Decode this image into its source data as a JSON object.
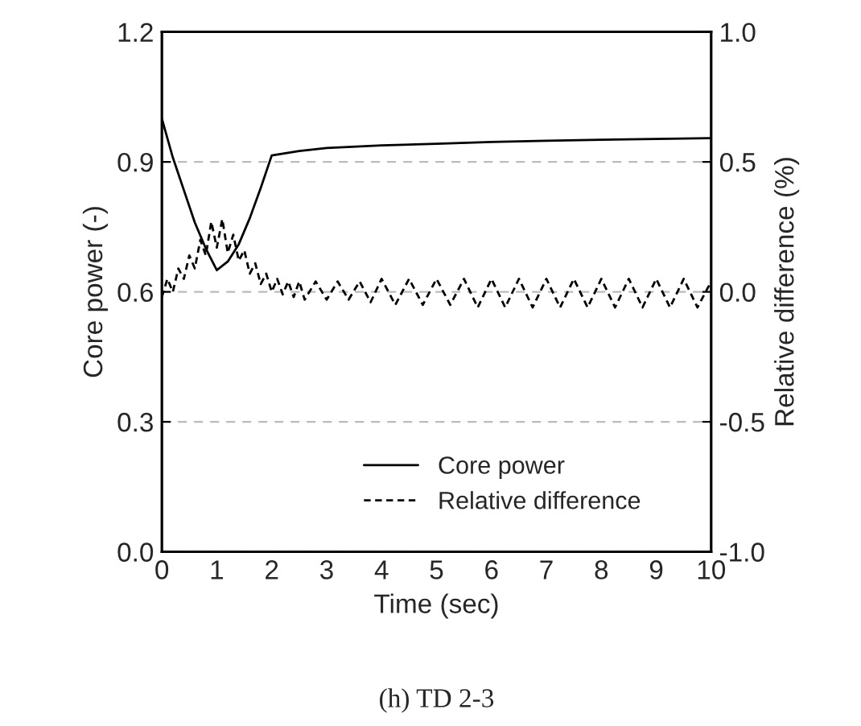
{
  "chart_data": {
    "type": "line",
    "xlabel": "Time (sec)",
    "ylabel": "Core power (-)",
    "y2label": "Relative difference (%)",
    "annotations": [
      "(h) TD 2-3"
    ],
    "xlim": [
      0,
      10
    ],
    "xticks": [
      0,
      1,
      2,
      3,
      4,
      5,
      6,
      7,
      8,
      9,
      10
    ],
    "ylim": [
      0,
      1.2
    ],
    "yticks": [
      {
        "value": 0,
        "label": "0.0"
      },
      0.3,
      0.6,
      0.9,
      1.2
    ],
    "y2lim": [
      -1,
      1
    ],
    "y2ticks": [
      {
        "value": -1,
        "label": "-1.0"
      },
      -0.5,
      {
        "value": 0,
        "label": "0.0"
      },
      0.5,
      {
        "value": 1,
        "label": "1.0"
      }
    ],
    "grid": "y",
    "legend": "bottom",
    "marker": "none",
    "series": [
      {
        "name": "Core power",
        "color": "#000000",
        "line_style": "solid",
        "x": [
          0,
          0.2,
          0.4,
          0.6,
          0.8,
          1.0,
          1.2,
          1.4,
          1.6,
          1.8,
          2.0,
          2.5,
          3,
          4,
          5,
          6,
          7,
          8,
          9,
          10
        ],
        "values": [
          1.0,
          0.91,
          0.835,
          0.76,
          0.7,
          0.65,
          0.67,
          0.71,
          0.77,
          0.84,
          0.915,
          0.925,
          0.932,
          0.938,
          0.942,
          0.946,
          0.949,
          0.951,
          0.953,
          0.955
        ]
      },
      {
        "name": "Relative difference",
        "color": "#000000",
        "line_style": "dashed",
        "axis": "y2",
        "x": [
          0,
          0.1,
          0.2,
          0.3,
          0.4,
          0.5,
          0.6,
          0.7,
          0.8,
          0.9,
          1.0,
          1.1,
          1.2,
          1.3,
          1.4,
          1.5,
          1.6,
          1.7,
          1.8,
          1.9,
          2.0,
          2.1,
          2.2,
          2.3,
          2.4,
          2.5,
          2.6,
          2.8,
          3.0,
          3.2,
          3.4,
          3.6,
          3.8,
          4.0,
          4.25,
          4.5,
          4.75,
          5.0,
          5.25,
          5.5,
          5.75,
          6,
          6.25,
          6.5,
          6.75,
          7,
          7.25,
          7.5,
          7.75,
          8,
          8.25,
          8.5,
          8.75,
          9,
          9.25,
          9.5,
          9.75,
          10
        ],
        "values": [
          -0.02,
          0.05,
          0.0,
          0.09,
          0.05,
          0.14,
          0.09,
          0.2,
          0.14,
          0.27,
          0.17,
          0.28,
          0.15,
          0.22,
          0.12,
          0.16,
          0.07,
          0.11,
          0.03,
          0.07,
          0.0,
          0.05,
          -0.01,
          0.04,
          -0.02,
          0.04,
          -0.03,
          0.04,
          -0.03,
          0.04,
          -0.03,
          0.04,
          -0.04,
          0.05,
          -0.05,
          0.05,
          -0.05,
          0.05,
          -0.05,
          0.05,
          -0.06,
          0.05,
          -0.06,
          0.05,
          -0.06,
          0.05,
          -0.06,
          0.05,
          -0.06,
          0.05,
          -0.06,
          0.05,
          -0.06,
          0.05,
          -0.06,
          0.05,
          -0.06,
          0.04
        ]
      }
    ]
  }
}
